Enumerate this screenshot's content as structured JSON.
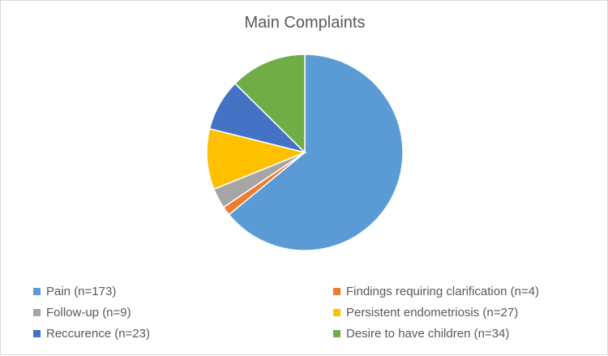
{
  "chart_data": {
    "type": "pie",
    "title": "Main Complaints",
    "legend_position": "bottom",
    "slices": [
      {
        "label": "Pain (n=173)",
        "value": 173,
        "color": "#5b9bd5"
      },
      {
        "label": "Findings requiring clarification (n=4)",
        "value": 4,
        "color": "#ed7d31"
      },
      {
        "label": "Follow-up (n=9)",
        "value": 9,
        "color": "#a5a5a5"
      },
      {
        "label": "Persistent endometriosis (n=27)",
        "value": 27,
        "color": "#ffc000"
      },
      {
        "label": "Reccurence (n=23)",
        "value": 23,
        "color": "#4472c4"
      },
      {
        "label": "Desire to have children (n=34)",
        "value": 34,
        "color": "#70ad47"
      }
    ]
  }
}
